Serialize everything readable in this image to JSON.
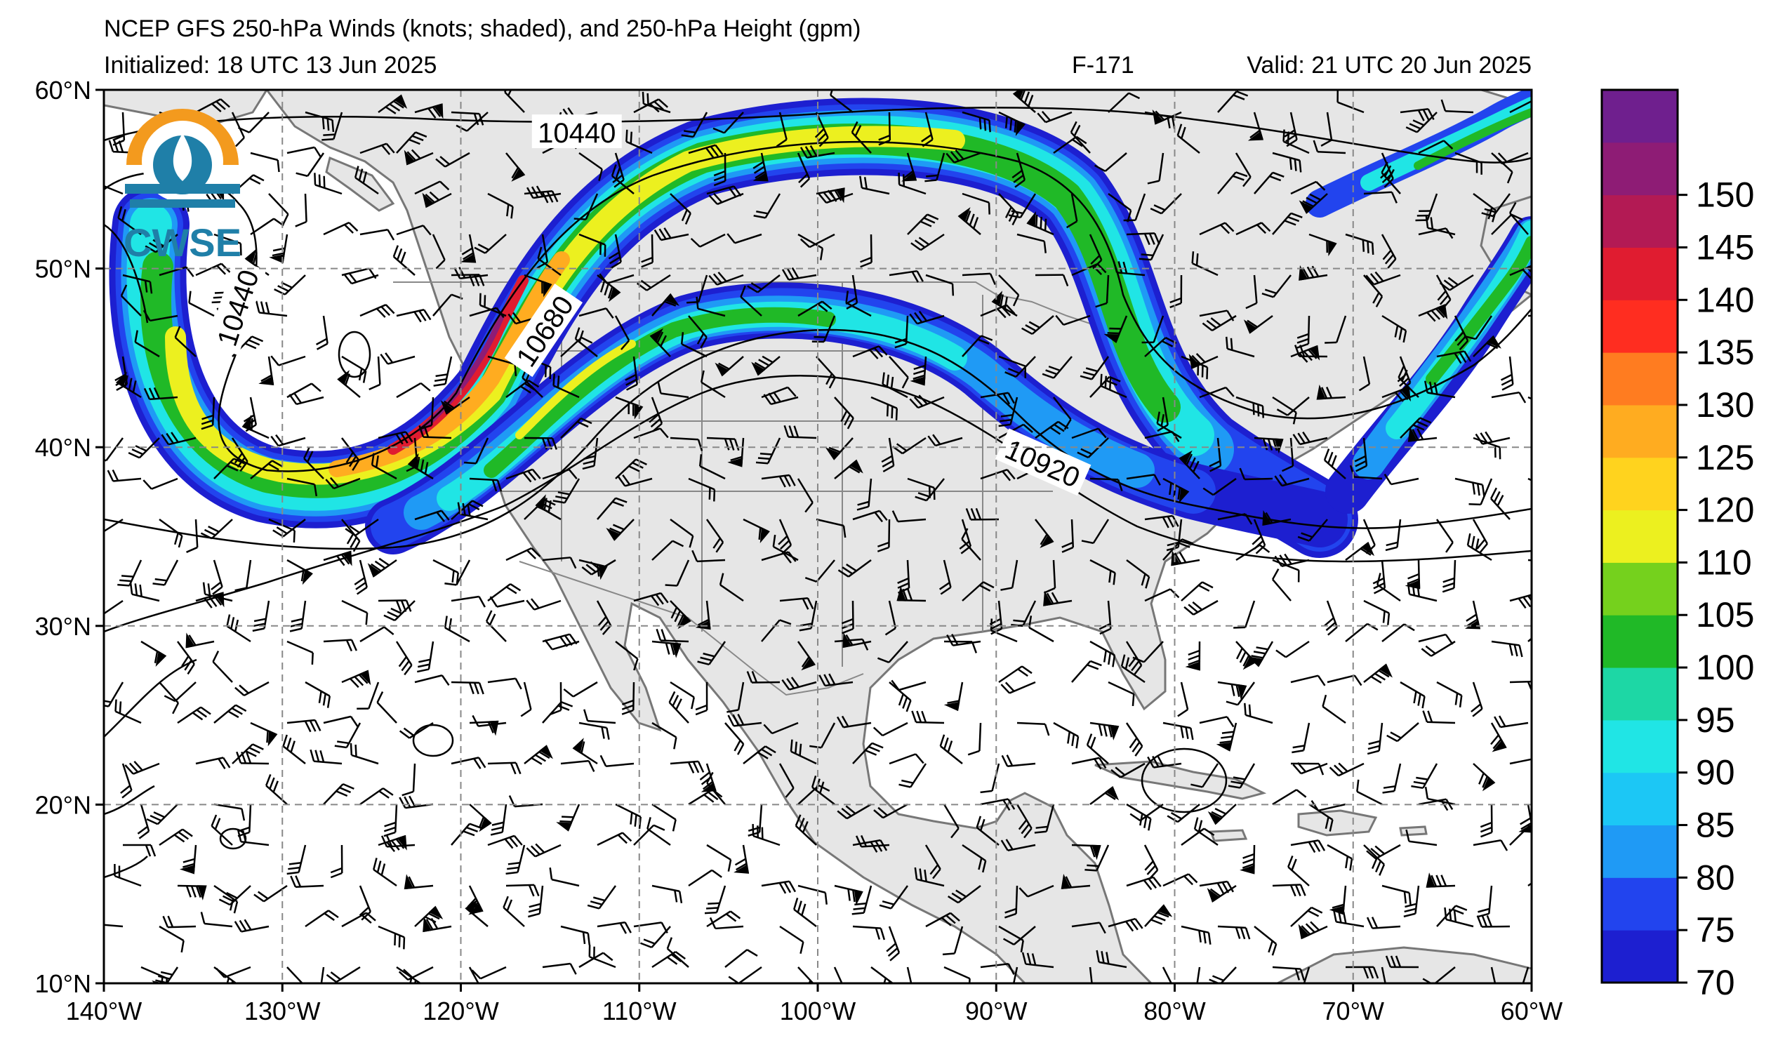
{
  "header": {
    "title_line1": "NCEP GFS 250-hPa Winds (knots; shaded), and 250-hPa Height (gpm)",
    "title_line2": "Initialized: 18 UTC 13 Jun 2025",
    "forecast_hour": "F-171",
    "valid_time": "Valid: 21 UTC 20 Jun 2025"
  },
  "logo": {
    "text": "CWSE",
    "colors": [
      "#f39a1e",
      "#1f7fa8"
    ]
  },
  "map": {
    "projection": "lat-lon",
    "lon_range": [
      -140,
      -60
    ],
    "lat_range": [
      10,
      60
    ],
    "land_color": "#e6e6e6",
    "ocean_color": "#ffffff",
    "grid": "dashed gray",
    "lon_ticks": [
      "140°W",
      "130°W",
      "120°W",
      "110°W",
      "100°W",
      "90°W",
      "80°W",
      "70°W",
      "60°W"
    ],
    "lat_ticks": [
      "60°N",
      "50°N",
      "40°N",
      "30°N",
      "20°N",
      "10°N"
    ]
  },
  "height_contours": {
    "labels": [
      {
        "text": "10440",
        "lon": -113.5,
        "lat": 57.6,
        "angle": 0
      },
      {
        "text": "10440",
        "lon": -132.5,
        "lat": 47.8,
        "angle": -72
      },
      {
        "text": "10680",
        "lon": -115.3,
        "lat": 46.5,
        "angle": -56
      },
      {
        "text": "10920",
        "lon": -87.4,
        "lat": 39.1,
        "angle": 24
      }
    ]
  },
  "colorbar": {
    "ticks": [
      "70",
      "75",
      "80",
      "85",
      "90",
      "95",
      "100",
      "105",
      "110",
      "120",
      "125",
      "130",
      "135",
      "140",
      "145",
      "150"
    ],
    "colors": [
      "#1d1fd0",
      "#2244ee",
      "#1f9af5",
      "#1cc7f5",
      "#20e5e5",
      "#1dd7a5",
      "#20b927",
      "#75d11d",
      "#ecf01f",
      "#ffd31e",
      "#ffac20",
      "#ff7c20",
      "#ff2d20",
      "#e01c30",
      "#b31a54",
      "#8e1c75",
      "#6f1f8e"
    ]
  },
  "jet_streams": [
    {
      "name": "main",
      "max_kt": 140
    },
    {
      "name": "southern",
      "max_kt": 110
    },
    {
      "name": "east",
      "max_kt": 105
    }
  ]
}
